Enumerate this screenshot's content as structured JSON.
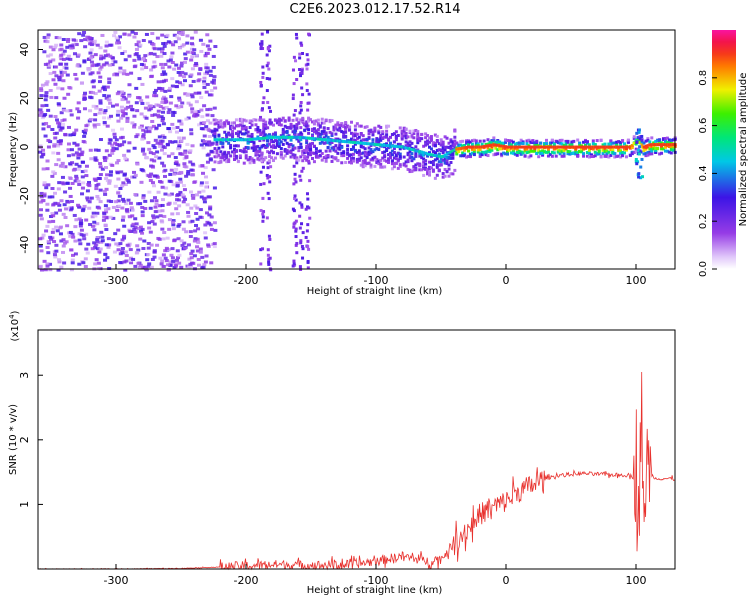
{
  "title": "C2E6.2023.012.17.52.R14",
  "chart_data": [
    {
      "type": "heatmap",
      "description_axes": true,
      "xlabel": "Height of straight line (km)",
      "ylabel": "Frequency (Hz)",
      "xlim": [
        -360,
        130
      ],
      "ylim": [
        -50,
        48
      ],
      "xticks": [
        -300,
        -200,
        -100,
        0,
        100
      ],
      "yticks": [
        -40,
        -20,
        0,
        20,
        40
      ],
      "colorbar": {
        "label": "Normalized spectral amplitude",
        "range": [
          0.0,
          1.0
        ],
        "ticks": [
          "0.0",
          "0.2",
          "0.4",
          "0.6",
          "0.8"
        ],
        "colormap": "rainbow (white-purple-blue-cyan-green-yellow-red-magenta)"
      },
      "ridge": {
        "x": [
          -220,
          -200,
          -180,
          -160,
          -140,
          -120,
          -100,
          -80,
          -60,
          -50,
          -40,
          -30,
          -20,
          -10,
          0,
          20,
          40,
          60,
          80,
          95,
          100,
          105,
          110,
          130
        ],
        "freq": [
          3,
          3,
          4,
          4,
          3,
          2,
          1,
          0,
          -3,
          -4,
          -1,
          0,
          0,
          1,
          0,
          0,
          0,
          0,
          0,
          0,
          3,
          0,
          1,
          1
        ],
        "amplitude": [
          0.3,
          0.3,
          0.3,
          0.35,
          0.35,
          0.35,
          0.3,
          0.3,
          0.6,
          0.8,
          0.85,
          0.9,
          0.9,
          0.9,
          0.9,
          0.9,
          0.9,
          0.9,
          0.9,
          0.9,
          0.6,
          0.9,
          0.9,
          0.9
        ]
      }
    },
    {
      "type": "line",
      "xlabel": "Height of straight line (km)",
      "ylabel": "SNR (10 * v/v)",
      "multiplier": "(x10^4)",
      "multiplier_base": "(x10",
      "multiplier_exp": "4",
      "xlim": [
        -360,
        130
      ],
      "ylim": [
        0,
        3.7
      ],
      "xticks": [
        -300,
        -200,
        -100,
        0,
        100
      ],
      "yticks": [
        1,
        2,
        3
      ],
      "color": "#e8322e",
      "series": [
        {
          "x": [
            -360,
            -300,
            -250,
            -220,
            -200,
            -180,
            -160,
            -140,
            -120,
            -100,
            -80,
            -60,
            -50,
            -40,
            -30,
            -20,
            -10,
            0,
            10,
            20,
            30,
            40,
            60,
            80,
            95,
            100,
            102,
            104,
            106,
            108,
            110,
            115,
            130
          ],
          "y": [
            0.0,
            0.0,
            0.01,
            0.03,
            0.05,
            0.07,
            0.06,
            0.06,
            0.07,
            0.12,
            0.2,
            0.12,
            0.15,
            0.4,
            0.6,
            0.85,
            0.95,
            1.05,
            1.2,
            1.3,
            1.4,
            1.45,
            1.48,
            1.46,
            1.45,
            1.4,
            0.3,
            3.0,
            0.2,
            1.9,
            1.5,
            1.4,
            1.4
          ]
        }
      ]
    }
  ]
}
